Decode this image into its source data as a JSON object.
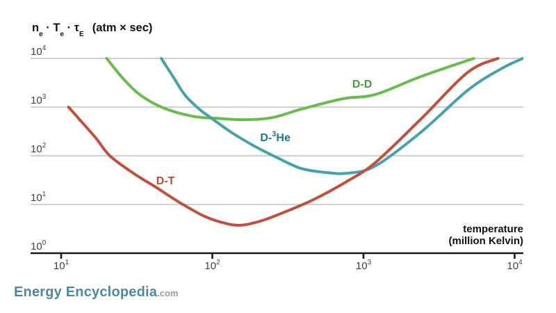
{
  "chart_data": {
    "type": "line",
    "title": {
      "t1": "n",
      "t1sub": "e",
      "dot1": " · ",
      "t2": "T",
      "t2sub": "e",
      "dot2": " · ",
      "t3": "τ",
      "t3sub": "E",
      "unit": "(atm × sec)"
    },
    "xlabel_line1": "temperature",
    "xlabel_line2": "(million Kelvin)",
    "x_axis": {
      "scale": "log",
      "ticks": [
        {
          "base": "10",
          "exp": "1",
          "value": 10
        },
        {
          "base": "10",
          "exp": "2",
          "value": 100
        },
        {
          "base": "10",
          "exp": "3",
          "value": 1000
        },
        {
          "base": "10",
          "exp": "4",
          "value": 10000
        }
      ]
    },
    "y_axis": {
      "scale": "log",
      "ticks": [
        {
          "base": "10",
          "exp": "4",
          "value": 10000
        },
        {
          "base": "10",
          "exp": "3",
          "value": 1000
        },
        {
          "base": "10",
          "exp": "2",
          "value": 100
        },
        {
          "base": "10",
          "exp": "1",
          "value": 10
        },
        {
          "base": "10",
          "exp": "0",
          "value": 1
        }
      ]
    },
    "xlim": [
      6.3,
      11500
    ],
    "ylim": [
      1,
      10000
    ],
    "grid": true,
    "legend": "inline-labels",
    "series": [
      {
        "name": "D-D",
        "label": {
          "pre": "D-D",
          "sup": "",
          "post": ""
        },
        "color": "#68bd4a",
        "label_color": "#459f36",
        "label_at": [
          980,
          2870
        ],
        "points": [
          [
            20,
            10000
          ],
          [
            26,
            3700
          ],
          [
            34,
            1700
          ],
          [
            48,
            950
          ],
          [
            75,
            645
          ],
          [
            110,
            585
          ],
          [
            165,
            552
          ],
          [
            250,
            610
          ],
          [
            384,
            900
          ],
          [
            725,
            1480
          ],
          [
            1200,
            1820
          ],
          [
            2400,
            4250
          ],
          [
            5360,
            10000
          ]
        ]
      },
      {
        "name": "D-3He",
        "label": {
          "pre": "D-",
          "sup": "3",
          "post": "He"
        },
        "color": "#47a0ae",
        "label_color": "#1b7490",
        "label_at": [
          261,
          224
        ],
        "points": [
          [
            46,
            10000
          ],
          [
            56,
            3860
          ],
          [
            66,
            1760
          ],
          [
            82,
            905
          ],
          [
            95,
            645
          ],
          [
            133,
            306
          ],
          [
            190,
            158
          ],
          [
            270,
            91
          ],
          [
            384,
            55.5
          ],
          [
            560,
            45.5
          ],
          [
            780,
            44
          ],
          [
            1200,
            62
          ],
          [
            2400,
            306
          ],
          [
            4900,
            2230
          ],
          [
            8000,
            5950
          ],
          [
            11300,
            10000
          ]
        ]
      },
      {
        "name": "D-T",
        "label": {
          "pre": "D-T",
          "sup": "",
          "post": ""
        },
        "color": "#c24f3d",
        "label_color": "#bc4a33",
        "label_at": [
          49,
          30
        ],
        "points": [
          [
            11.2,
            1000
          ],
          [
            13.5,
            520
          ],
          [
            17,
            230
          ],
          [
            21,
            100
          ],
          [
            30,
            44
          ],
          [
            42,
            23
          ],
          [
            60,
            11.3
          ],
          [
            88,
            5.8
          ],
          [
            120,
            4.15
          ],
          [
            155,
            3.75
          ],
          [
            210,
            4.6
          ],
          [
            270,
            6.1
          ],
          [
            460,
            12.3
          ],
          [
            780,
            30
          ],
          [
            1200,
            73
          ],
          [
            2400,
            570
          ],
          [
            4900,
            5200
          ],
          [
            7750,
            10000
          ]
        ]
      }
    ]
  },
  "colors": {
    "gridline": "#b3b3b3",
    "axis": "#1a1a1a",
    "tick_label": "#414141",
    "title": "#111111",
    "brand_blue": "#4d87a3",
    "brand_gray": "#9b9b9b"
  },
  "branding": {
    "name": "Energy Encyclopedia",
    "tld": ".com"
  }
}
